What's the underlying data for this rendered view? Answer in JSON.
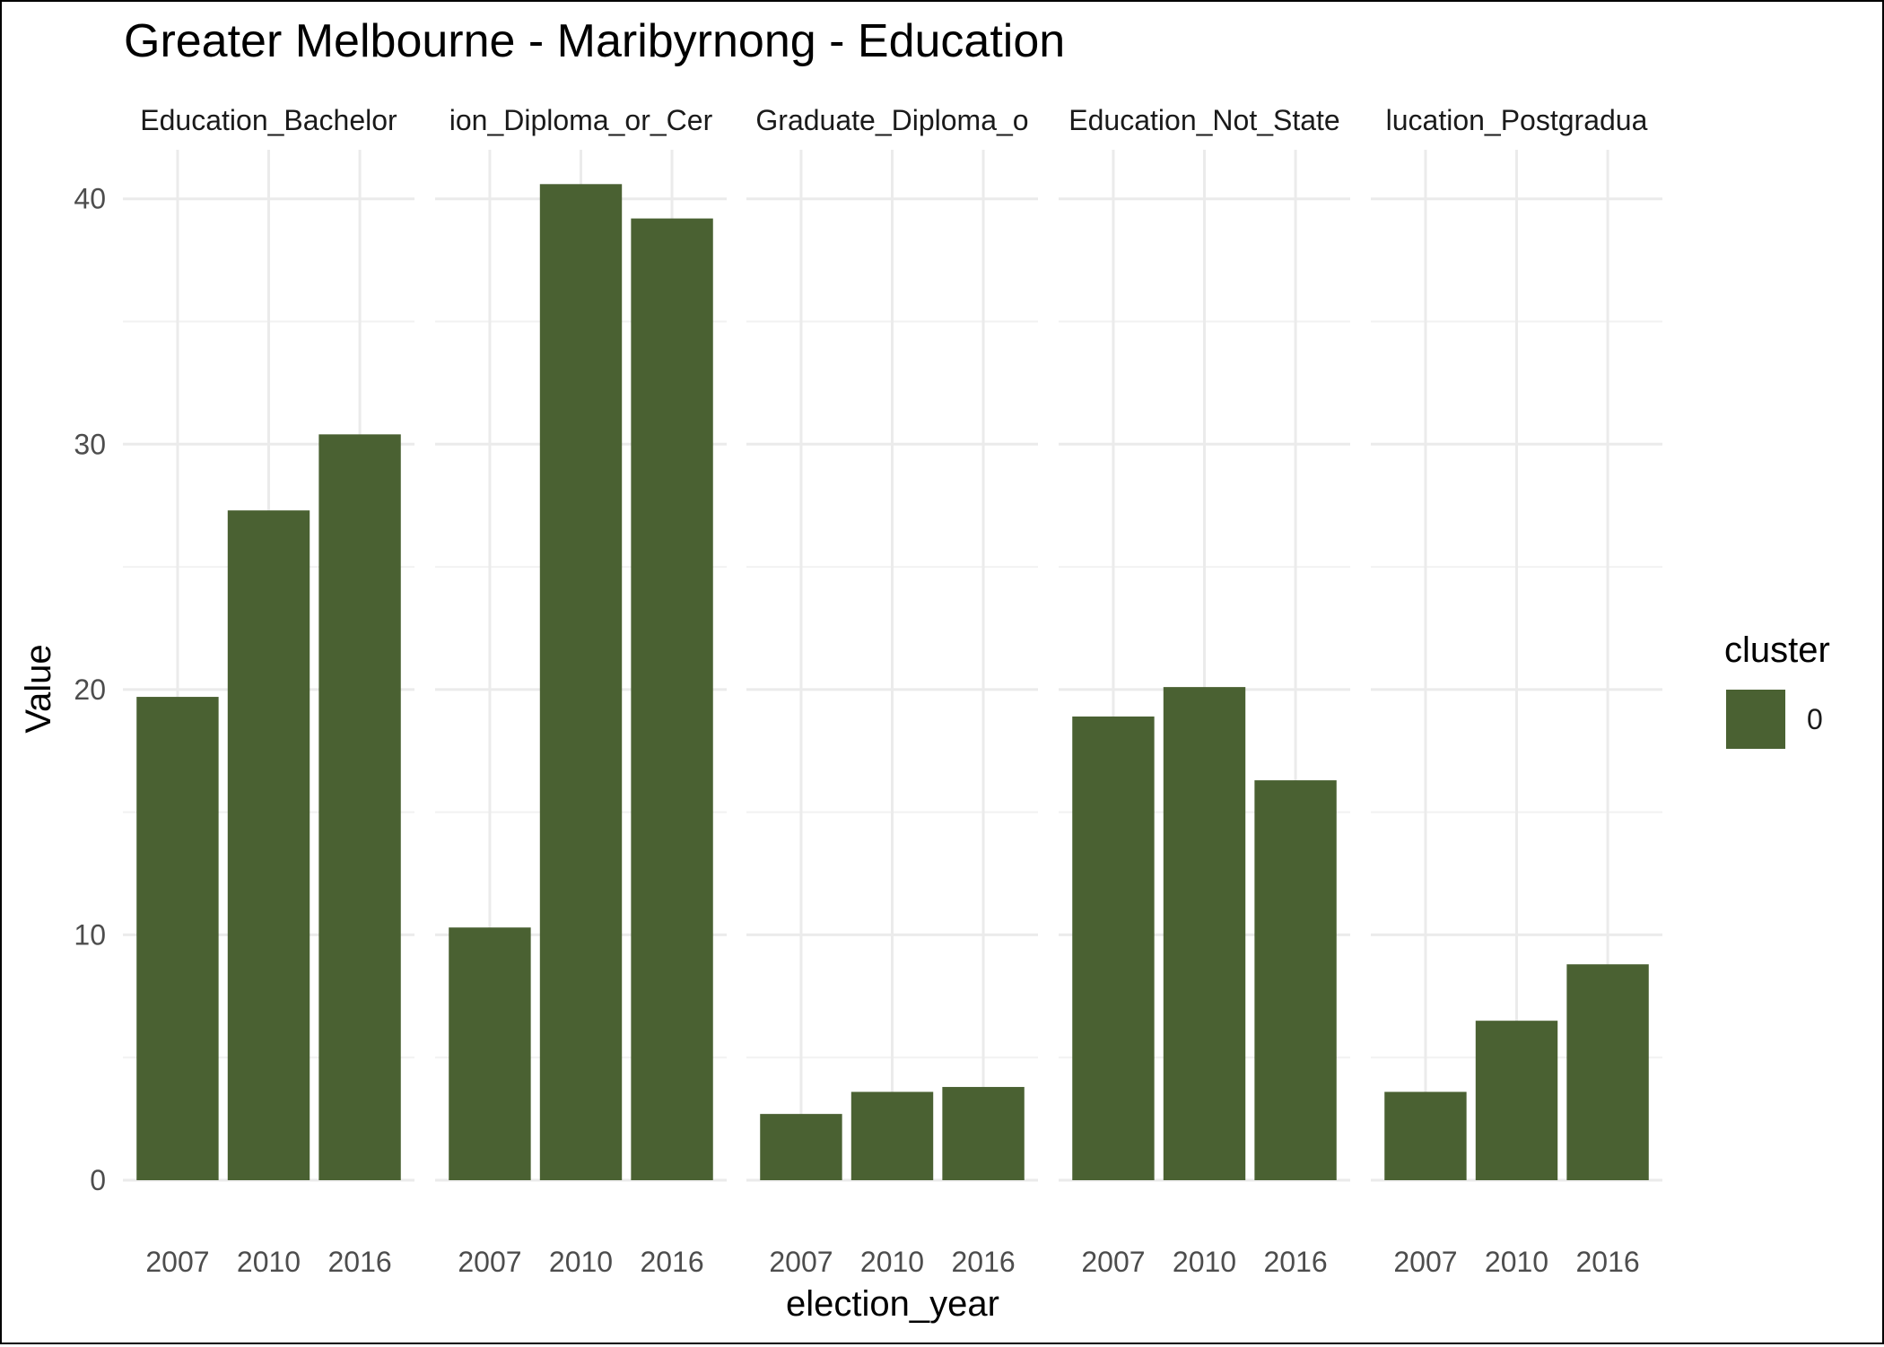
{
  "chart_data": {
    "type": "bar",
    "title": "Greater Melbourne - Maribyrnong - Education",
    "xlabel": "election_year",
    "ylabel": "Value",
    "ylim": [
      0,
      42
    ],
    "y_ticks": [
      0,
      10,
      20,
      30,
      40
    ],
    "grid": true,
    "bar_color": "#4a6132",
    "categories": [
      "2007",
      "2010",
      "2016"
    ],
    "facets": [
      {
        "label": "Education_Bachelor",
        "values": [
          19.7,
          27.3,
          30.4
        ]
      },
      {
        "label": "ion_Diploma_or_Cer",
        "values": [
          10.3,
          40.6,
          39.2
        ]
      },
      {
        "label": "Graduate_Diploma_o",
        "values": [
          2.7,
          3.6,
          3.8
        ]
      },
      {
        "label": "Education_Not_State",
        "values": [
          18.9,
          20.1,
          16.3
        ]
      },
      {
        "label": "lucation_Postgradua",
        "values": [
          3.6,
          6.5,
          8.8
        ]
      }
    ],
    "legend": {
      "title": "cluster",
      "position": "right",
      "items": [
        {
          "label": "0",
          "color": "#4a6132"
        }
      ]
    }
  }
}
